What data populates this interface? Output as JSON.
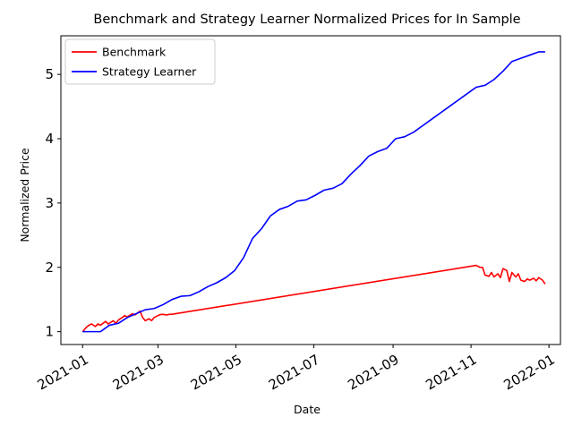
{
  "chart_data": {
    "type": "line",
    "title": "Benchmark and Strategy Learner Normalized Prices for In Sample",
    "xlabel": "Date",
    "ylabel": "Normalized Price",
    "x_type": "date",
    "xlim": [
      "2020-12-15",
      "2022-01-10"
    ],
    "ylim": [
      0.8,
      5.6
    ],
    "x_ticks": [
      "2021-01-01",
      "2021-03-01",
      "2021-05-01",
      "2021-07-01",
      "2021-09-01",
      "2021-11-01",
      "2022-01-01"
    ],
    "x_tick_labels": [
      "2021-01",
      "2021-03",
      "2021-05",
      "2021-07",
      "2021-09",
      "2021-11",
      "2022-01"
    ],
    "y_ticks": [
      1,
      2,
      3,
      4,
      5
    ],
    "y_tick_labels": [
      "1",
      "2",
      "3",
      "4",
      "5"
    ],
    "grid": false,
    "legend_position": "upper-left",
    "series": [
      {
        "name": "Benchmark",
        "color": "#ff0000",
        "x": [
          "2021-01-01",
          "2021-01-04",
          "2021-01-06",
          "2021-01-08",
          "2021-01-11",
          "2021-01-13",
          "2021-01-15",
          "2021-01-19",
          "2021-01-21",
          "2021-01-25",
          "2021-01-27",
          "2021-01-29",
          "2021-02-01",
          "2021-02-03",
          "2021-02-05",
          "2021-02-09",
          "2021-02-11",
          "2021-02-15",
          "2021-02-17",
          "2021-02-19",
          "2021-02-22",
          "2021-02-24",
          "2021-02-26",
          "2021-03-02",
          "2021-03-04",
          "2021-03-08",
          "2021-03-10",
          "2021-03-12",
          "2021-11-05",
          "2021-11-08",
          "2021-11-10",
          "2021-11-12",
          "2021-11-15",
          "2021-11-17",
          "2021-11-19",
          "2021-11-22",
          "2021-11-24",
          "2021-11-26",
          "2021-11-29",
          "2021-12-01",
          "2021-12-03",
          "2021-12-06",
          "2021-12-08",
          "2021-12-10",
          "2021-12-13",
          "2021-12-15",
          "2021-12-17",
          "2021-12-20",
          "2021-12-22",
          "2021-12-24",
          "2021-12-27",
          "2021-12-29"
        ],
        "values": [
          1.0,
          1.07,
          1.1,
          1.12,
          1.08,
          1.12,
          1.1,
          1.16,
          1.12,
          1.17,
          1.13,
          1.18,
          1.22,
          1.25,
          1.23,
          1.28,
          1.26,
          1.32,
          1.22,
          1.17,
          1.2,
          1.17,
          1.22,
          1.26,
          1.27,
          1.26,
          1.27,
          1.27,
          2.03,
          2.0,
          2.0,
          1.88,
          1.86,
          1.92,
          1.85,
          1.9,
          1.84,
          1.98,
          1.95,
          1.78,
          1.92,
          1.85,
          1.9,
          1.8,
          1.78,
          1.82,
          1.8,
          1.83,
          1.79,
          1.84,
          1.8,
          1.74
        ]
      },
      {
        "name": "Strategy Learner",
        "color": "#0000ff",
        "x": [
          "2021-01-01",
          "2021-01-08",
          "2021-01-15",
          "2021-01-22",
          "2021-01-29",
          "2021-02-05",
          "2021-02-12",
          "2021-02-19",
          "2021-02-26",
          "2021-03-05",
          "2021-03-12",
          "2021-03-19",
          "2021-03-26",
          "2021-04-02",
          "2021-04-09",
          "2021-04-16",
          "2021-04-23",
          "2021-04-30",
          "2021-05-07",
          "2021-05-14",
          "2021-05-21",
          "2021-05-28",
          "2021-06-04",
          "2021-06-11",
          "2021-06-18",
          "2021-06-25",
          "2021-07-02",
          "2021-07-09",
          "2021-07-16",
          "2021-07-23",
          "2021-07-30",
          "2021-08-06",
          "2021-08-13",
          "2021-08-20",
          "2021-08-27",
          "2021-09-03",
          "2021-09-10",
          "2021-09-17",
          "2021-09-24",
          "2021-10-01",
          "2021-10-08",
          "2021-10-15",
          "2021-10-22",
          "2021-10-29",
          "2021-11-05",
          "2021-11-12",
          "2021-11-19",
          "2021-11-26",
          "2021-12-03",
          "2021-12-10",
          "2021-12-17",
          "2021-12-24",
          "2021-12-29"
        ],
        "values": [
          1.0,
          1.0,
          1.0,
          1.1,
          1.13,
          1.22,
          1.28,
          1.34,
          1.36,
          1.42,
          1.5,
          1.55,
          1.56,
          1.62,
          1.7,
          1.76,
          1.84,
          1.95,
          2.15,
          2.45,
          2.6,
          2.8,
          2.9,
          2.95,
          3.03,
          3.05,
          3.12,
          3.2,
          3.23,
          3.3,
          3.45,
          3.58,
          3.73,
          3.8,
          3.85,
          4.0,
          4.03,
          4.1,
          4.2,
          4.3,
          4.4,
          4.5,
          4.6,
          4.7,
          4.8,
          4.83,
          4.92,
          5.05,
          5.2,
          5.25,
          5.3,
          5.35,
          5.35
        ]
      }
    ]
  }
}
